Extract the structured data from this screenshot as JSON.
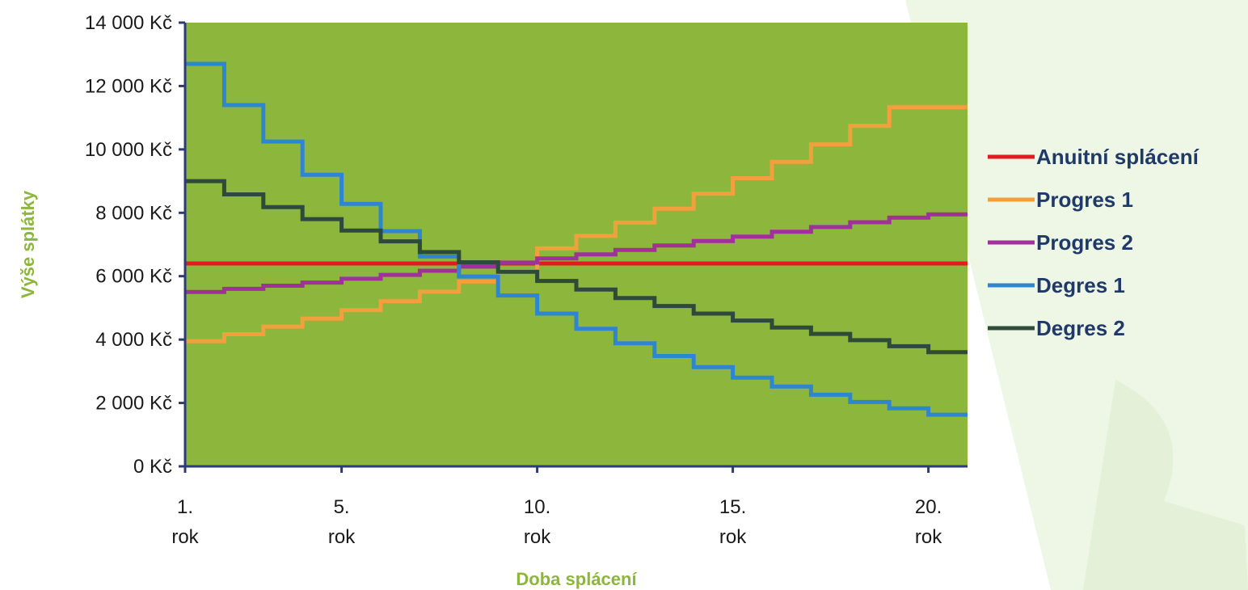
{
  "chart_data": {
    "type": "line",
    "step": true,
    "x_tick_labels": [
      {
        "year": 1,
        "line1": "1.",
        "line2": "rok"
      },
      {
        "year": 5,
        "line1": "5.",
        "line2": "rok"
      },
      {
        "year": 10,
        "line1": "10.",
        "line2": "rok"
      },
      {
        "year": 15,
        "line1": "15.",
        "line2": "rok"
      },
      {
        "year": 20,
        "line1": "20.",
        "line2": "rok"
      }
    ],
    "y_ticks": [
      {
        "value": 0,
        "label": "0 Kč"
      },
      {
        "value": 2000,
        "label": "2 000 Kč"
      },
      {
        "value": 4000,
        "label": "4 000 Kč"
      },
      {
        "value": 6000,
        "label": "6 000 Kč"
      },
      {
        "value": 8000,
        "label": "8 000 Kč"
      },
      {
        "value": 10000,
        "label": "10 000 Kč"
      },
      {
        "value": 12000,
        "label": "12 000 Kč"
      },
      {
        "value": 14000,
        "label": "14 000 Kč"
      }
    ],
    "xlabel": "Doba splácení",
    "ylabel": "Výše splátky",
    "xlim": [
      1,
      21
    ],
    "ylim": [
      0,
      14000
    ],
    "legend_position": "right",
    "plot_background": "#8db63c",
    "axis_title_color": "#8db63c",
    "axis_color": "#2d3a78",
    "series": [
      {
        "name": "Anuitní splácení",
        "color": "#e11b22",
        "values": [
          6400,
          6400,
          6400,
          6400,
          6400,
          6400,
          6400,
          6400,
          6400,
          6400,
          6400,
          6400,
          6400,
          6400,
          6400,
          6400,
          6400,
          6400,
          6400,
          6400
        ]
      },
      {
        "name": "Progres 1",
        "color": "#f0a03c",
        "values": [
          3950,
          4170,
          4410,
          4660,
          4930,
          5210,
          5510,
          5830,
          6160,
          6880,
          7270,
          7690,
          8130,
          8600,
          9090,
          9610,
          10160,
          10740,
          11330,
          11330
        ]
      },
      {
        "name": "Progres 2",
        "color": "#a0309a",
        "values": [
          5500,
          5600,
          5700,
          5800,
          5920,
          6040,
          6170,
          6300,
          6430,
          6560,
          6690,
          6830,
          6970,
          7110,
          7250,
          7400,
          7550,
          7700,
          7850,
          7950
        ]
      },
      {
        "name": "Degres 1",
        "color": "#2e86d0",
        "values": [
          12700,
          11400,
          10250,
          9200,
          8280,
          7420,
          6620,
          5990,
          5390,
          4820,
          4340,
          3880,
          3480,
          3130,
          2800,
          2520,
          2260,
          2030,
          1830,
          1630
        ]
      },
      {
        "name": "Degres 2",
        "color": "#2e4a38",
        "values": [
          9000,
          8580,
          8180,
          7800,
          7440,
          7100,
          6760,
          6440,
          6140,
          5850,
          5580,
          5310,
          5060,
          4820,
          4600,
          4380,
          4180,
          3980,
          3790,
          3600
        ]
      }
    ]
  }
}
